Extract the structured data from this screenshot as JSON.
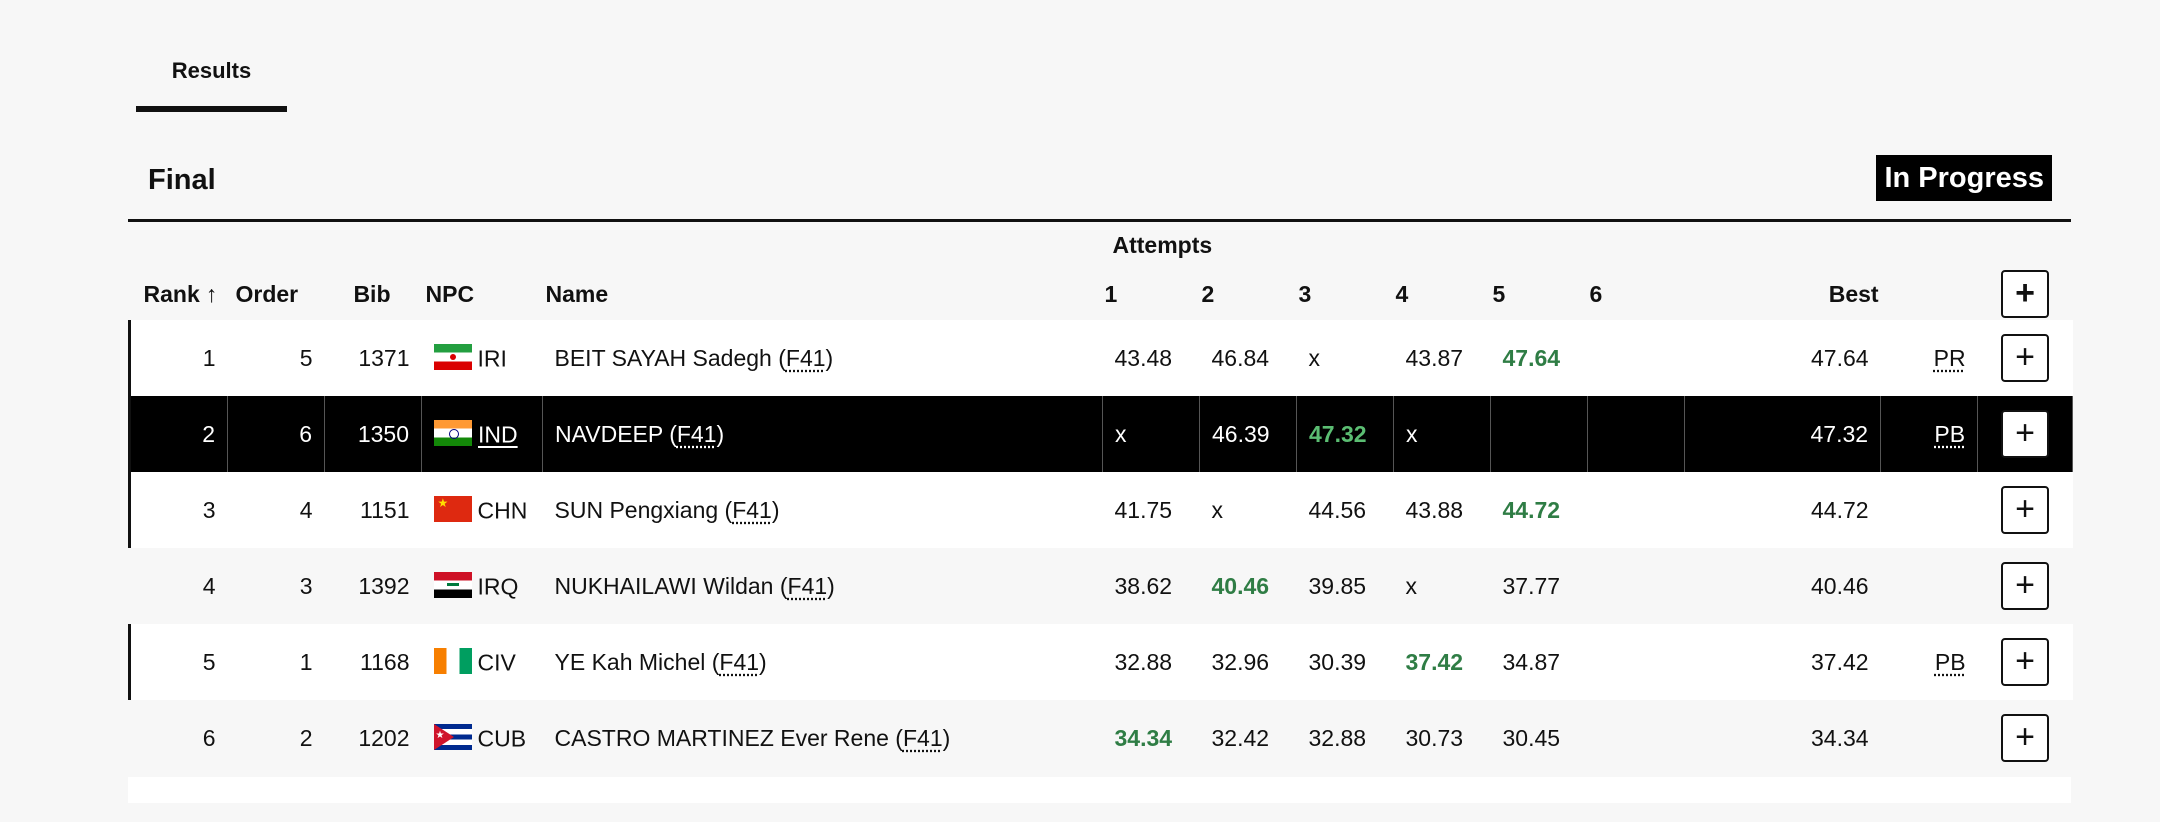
{
  "tabs": [
    {
      "label": "Results"
    }
  ],
  "section": {
    "title": "Final",
    "status": "In Progress"
  },
  "table": {
    "group_header": "Attempts",
    "columns": {
      "rank": "Rank",
      "sort_indicator": "↑",
      "order": "Order",
      "bib": "Bib",
      "npc": "NPC",
      "name": "Name",
      "attempts": [
        "1",
        "2",
        "3",
        "4",
        "5",
        "6"
      ],
      "best": "Best",
      "expand": "+"
    },
    "rows": [
      {
        "rank": "1",
        "order": "5",
        "bib": "1371",
        "npc": "IRI",
        "flag": "iran-flag-icon",
        "name": "BEIT SAYAH Sadegh (",
        "class": "F41",
        "name_end": ")",
        "attempts": [
          "43.48",
          "46.84",
          "x",
          "43.87",
          "47.64",
          ""
        ],
        "best_attempt": 4,
        "best": "47.64",
        "record": "PR",
        "expand": "+"
      },
      {
        "rank": "2",
        "order": "6",
        "bib": "1350",
        "npc": "IND",
        "flag": "india-flag-icon",
        "name": "NAVDEEP (",
        "class": "F41",
        "name_end": ")",
        "attempts": [
          "x",
          "46.39",
          "47.32",
          "x",
          "",
          ""
        ],
        "best_attempt": 2,
        "best": "47.32",
        "record": "PB",
        "expand": "+"
      },
      {
        "rank": "3",
        "order": "4",
        "bib": "1151",
        "npc": "CHN",
        "flag": "china-flag-icon",
        "name": "SUN Pengxiang (",
        "class": "F41",
        "name_end": ")",
        "attempts": [
          "41.75",
          "x",
          "44.56",
          "43.88",
          "44.72",
          ""
        ],
        "best_attempt": 4,
        "best": "44.72",
        "record": "",
        "expand": "+"
      },
      {
        "rank": "4",
        "order": "3",
        "bib": "1392",
        "npc": "IRQ",
        "flag": "iraq-flag-icon",
        "name": "NUKHAILAWI Wildan (",
        "class": "F41",
        "name_end": ")",
        "attempts": [
          "38.62",
          "40.46",
          "39.85",
          "x",
          "37.77",
          ""
        ],
        "best_attempt": 1,
        "best": "40.46",
        "record": "",
        "expand": "+"
      },
      {
        "rank": "5",
        "order": "1",
        "bib": "1168",
        "npc": "CIV",
        "flag": "ivory-coast-flag-icon",
        "name": "YE Kah Michel (",
        "class": "F41",
        "name_end": ")",
        "attempts": [
          "32.88",
          "32.96",
          "30.39",
          "37.42",
          "34.87",
          ""
        ],
        "best_attempt": 3,
        "best": "37.42",
        "record": "PB",
        "expand": "+"
      },
      {
        "rank": "6",
        "order": "2",
        "bib": "1202",
        "npc": "CUB",
        "flag": "cuba-flag-icon",
        "name": "CASTRO MARTINEZ Ever Rene (",
        "class": "F41",
        "name_end": ")",
        "attempts": [
          "34.34",
          "32.42",
          "32.88",
          "30.73",
          "30.45",
          ""
        ],
        "best_attempt": 0,
        "best": "34.34",
        "record": "",
        "expand": "+"
      }
    ]
  },
  "colors": {
    "best_mark": "#2f7d45",
    "highlight_row": "#000000",
    "badge_bg": "#000000"
  }
}
